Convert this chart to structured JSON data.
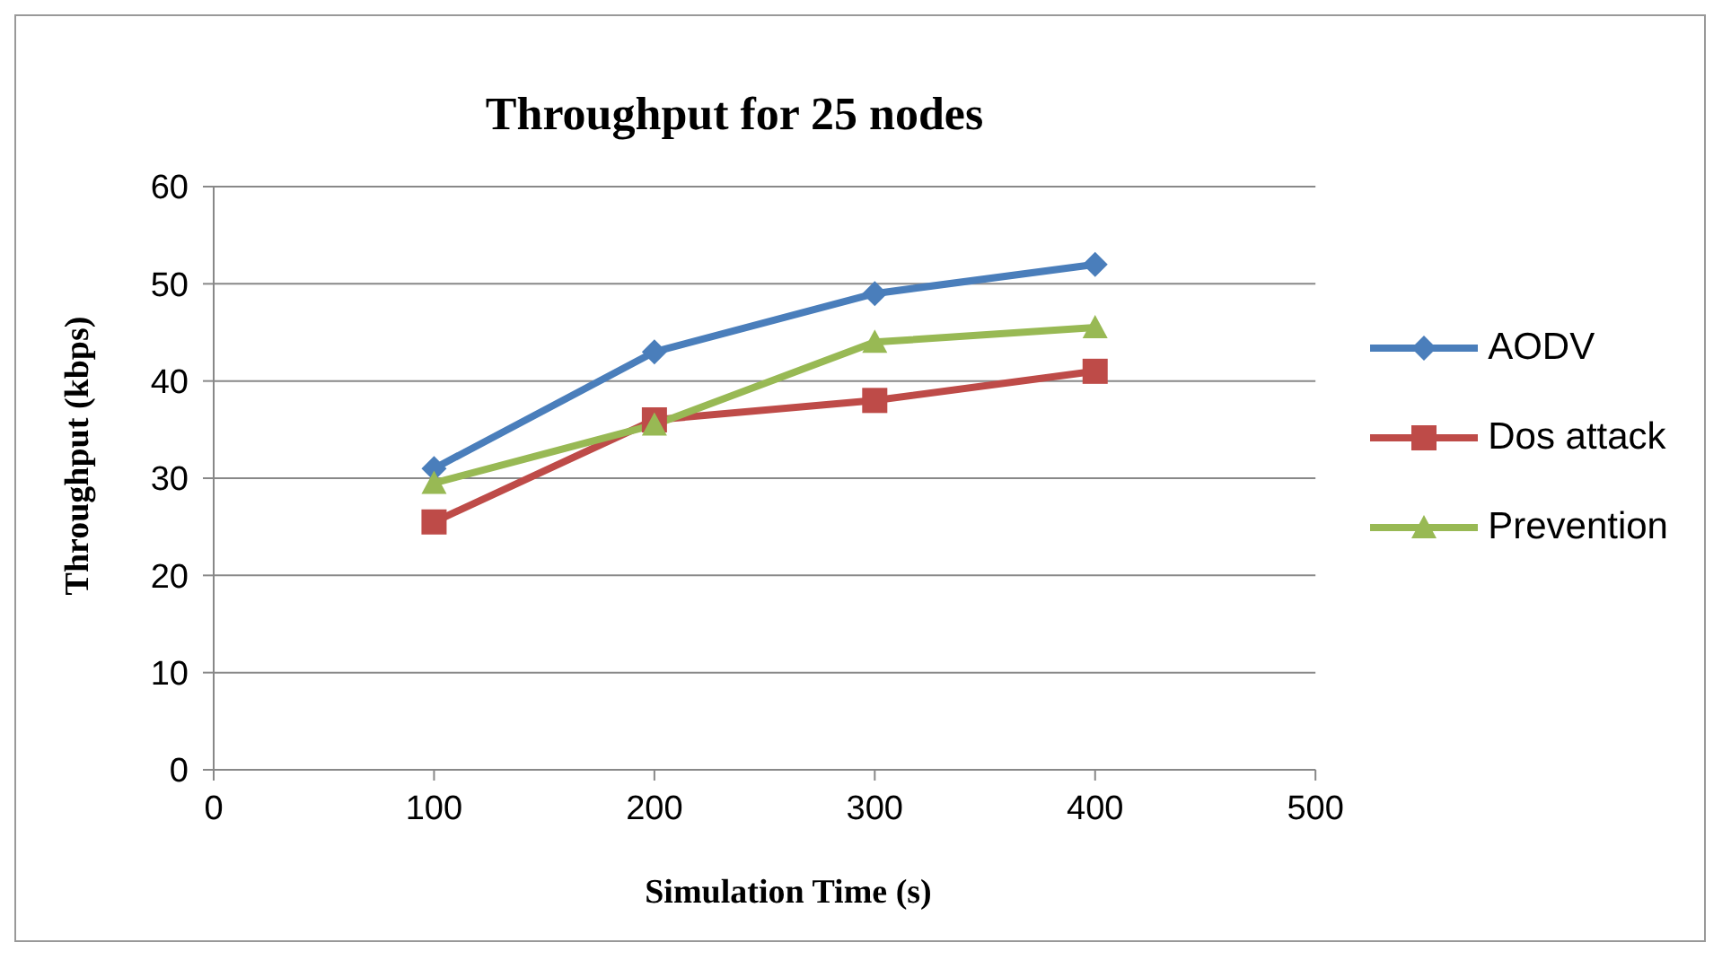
{
  "chart_data": {
    "type": "line",
    "title": "Throughput for 25 nodes",
    "xlabel": "Simulation Time (s)",
    "ylabel": "Throughput (kbps)",
    "x": [
      100,
      200,
      300,
      400
    ],
    "series": [
      {
        "name": "AODV",
        "color": "#4a7ebb",
        "marker": "diamond",
        "values": [
          31,
          43,
          49,
          52
        ]
      },
      {
        "name": "Dos attack",
        "color": "#be4b48",
        "marker": "square",
        "values": [
          25.5,
          36,
          38,
          41
        ]
      },
      {
        "name": "Prevention",
        "color": "#98b954",
        "marker": "triangle",
        "values": [
          29.5,
          35.5,
          44,
          45.5
        ]
      }
    ],
    "xlim": [
      0,
      500
    ],
    "xticks": [
      0,
      100,
      200,
      300,
      400,
      500
    ],
    "ylim": [
      0,
      60
    ],
    "yticks": [
      0,
      10,
      20,
      30,
      40,
      50,
      60
    ],
    "grid": "y",
    "legend": "right"
  }
}
